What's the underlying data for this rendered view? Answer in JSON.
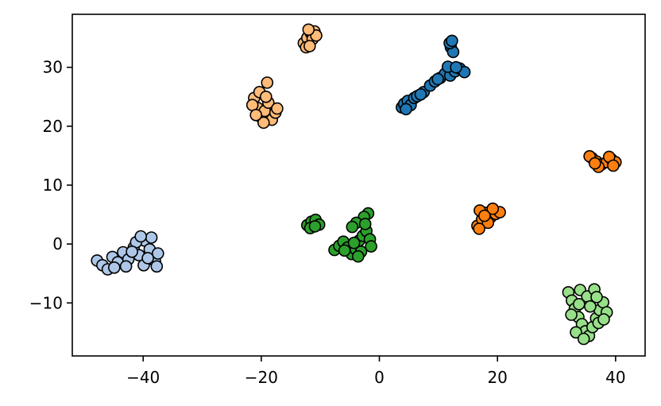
{
  "chart_data": {
    "type": "scatter",
    "title": "",
    "xlabel": "",
    "ylabel": "",
    "xlim": [
      -52,
      45
    ],
    "ylim": [
      -19,
      39
    ],
    "grid": false,
    "legend": "none",
    "x_ticks": [
      {
        "value": -40,
        "label": "−40"
      },
      {
        "value": -20,
        "label": "−20"
      },
      {
        "value": 0,
        "label": "0"
      },
      {
        "value": 20,
        "label": "20"
      },
      {
        "value": 40,
        "label": "40"
      }
    ],
    "y_ticks": [
      {
        "value": -10,
        "label": "−10"
      },
      {
        "value": 0,
        "label": "0"
      },
      {
        "value": 10,
        "label": "10"
      },
      {
        "value": 20,
        "label": "20"
      },
      {
        "value": 30,
        "label": "30"
      }
    ],
    "series": [
      {
        "color": "#1f77b4",
        "points": [
          [
            3.8,
            23.2
          ],
          [
            4.2,
            23.8
          ],
          [
            4.8,
            24.3
          ],
          [
            5.3,
            23.6
          ],
          [
            5.9,
            24.8
          ],
          [
            4.5,
            22.9
          ],
          [
            6.4,
            25.1
          ],
          [
            7.5,
            25.8
          ],
          [
            8.6,
            26.9
          ],
          [
            9.4,
            27.6
          ],
          [
            10.3,
            28.2
          ],
          [
            11.1,
            28.9
          ],
          [
            12.0,
            28.6
          ],
          [
            12.8,
            29.3
          ],
          [
            13.6,
            29.8
          ],
          [
            14.4,
            29.2
          ],
          [
            11.6,
            30.1
          ],
          [
            9.9,
            28.0
          ],
          [
            12.1,
            33.4
          ],
          [
            12.5,
            32.6
          ],
          [
            11.9,
            34.1
          ],
          [
            12.3,
            34.5
          ],
          [
            13.0,
            30.0
          ],
          [
            7.0,
            25.4
          ]
        ]
      },
      {
        "color": "#ff7f0e",
        "points": [
          [
            36.0,
            14.6
          ],
          [
            36.8,
            14.0
          ],
          [
            37.6,
            13.5
          ],
          [
            38.5,
            13.9
          ],
          [
            39.3,
            14.4
          ],
          [
            40.0,
            13.9
          ],
          [
            37.1,
            13.1
          ],
          [
            38.9,
            14.8
          ],
          [
            35.6,
            14.9
          ],
          [
            39.6,
            13.3
          ],
          [
            36.5,
            13.7
          ],
          [
            16.6,
            3.1
          ],
          [
            17.4,
            4.2
          ],
          [
            18.1,
            5.3
          ],
          [
            18.9,
            4.6
          ],
          [
            19.7,
            5.1
          ],
          [
            20.4,
            5.4
          ],
          [
            17.0,
            5.7
          ],
          [
            18.4,
            3.6
          ],
          [
            16.9,
            2.6
          ],
          [
            19.2,
            6.0
          ],
          [
            17.8,
            4.8
          ]
        ]
      },
      {
        "color": "#ffbb78",
        "points": [
          [
            -12.8,
            34.1
          ],
          [
            -12.2,
            35.0
          ],
          [
            -11.6,
            35.8
          ],
          [
            -11.0,
            36.1
          ],
          [
            -12.4,
            33.4
          ],
          [
            -11.3,
            34.8
          ],
          [
            -10.7,
            35.4
          ],
          [
            -12.0,
            36.4
          ],
          [
            -11.8,
            33.6
          ],
          [
            -21.2,
            24.8
          ],
          [
            -20.6,
            23.1
          ],
          [
            -20.0,
            21.5
          ],
          [
            -19.4,
            22.6
          ],
          [
            -18.8,
            24.0
          ],
          [
            -18.2,
            21.1
          ],
          [
            -17.6,
            22.3
          ],
          [
            -19.0,
            27.4
          ],
          [
            -20.3,
            25.8
          ],
          [
            -21.5,
            23.6
          ],
          [
            -19.6,
            20.6
          ],
          [
            -17.3,
            23.0
          ],
          [
            -20.9,
            21.9
          ],
          [
            -19.2,
            25.0
          ]
        ]
      },
      {
        "color": "#2ca02c",
        "points": [
          [
            -12.2,
            3.2
          ],
          [
            -11.5,
            3.8
          ],
          [
            -10.8,
            4.1
          ],
          [
            -10.2,
            3.3
          ],
          [
            -11.7,
            2.7
          ],
          [
            -10.9,
            3.0
          ],
          [
            -7.6,
            -1.0
          ],
          [
            -6.8,
            -0.3
          ],
          [
            -6.1,
            0.4
          ],
          [
            -5.4,
            -0.6
          ],
          [
            -4.7,
            -1.7
          ],
          [
            -4.0,
            -0.9
          ],
          [
            -3.4,
            0.6
          ],
          [
            -2.8,
            1.4
          ],
          [
            -2.2,
            2.2
          ],
          [
            -1.6,
            0.8
          ],
          [
            -1.9,
            5.2
          ],
          [
            -2.6,
            4.6
          ],
          [
            -3.9,
            3.6
          ],
          [
            -4.6,
            2.9
          ],
          [
            -3.1,
            -1.3
          ],
          [
            -5.9,
            -1.1
          ],
          [
            -1.4,
            -0.4
          ],
          [
            -2.4,
            3.4
          ],
          [
            -4.3,
            0.2
          ],
          [
            -3.6,
            -2.1
          ]
        ]
      },
      {
        "color": "#98df8a",
        "points": [
          [
            32.0,
            -8.2
          ],
          [
            32.6,
            -9.6
          ],
          [
            33.1,
            -11.0
          ],
          [
            33.7,
            -12.4
          ],
          [
            34.3,
            -13.6
          ],
          [
            34.9,
            -14.8
          ],
          [
            35.5,
            -15.6
          ],
          [
            36.1,
            -14.1
          ],
          [
            36.7,
            -12.6
          ],
          [
            37.3,
            -11.2
          ],
          [
            37.9,
            -9.9
          ],
          [
            38.5,
            -11.6
          ],
          [
            34.0,
            -7.8
          ],
          [
            35.2,
            -8.9
          ],
          [
            36.4,
            -7.7
          ],
          [
            33.3,
            -15.0
          ],
          [
            34.6,
            -16.1
          ],
          [
            37.1,
            -13.4
          ],
          [
            35.7,
            -10.6
          ],
          [
            32.5,
            -12.0
          ],
          [
            38.0,
            -12.8
          ],
          [
            36.8,
            -9.0
          ],
          [
            33.8,
            -10.2
          ]
        ]
      },
      {
        "color": "#aec7e8",
        "points": [
          [
            -47.8,
            -2.8
          ],
          [
            -46.9,
            -3.6
          ],
          [
            -46.0,
            -4.3
          ],
          [
            -45.2,
            -2.2
          ],
          [
            -44.3,
            -3.1
          ],
          [
            -43.4,
            -1.4
          ],
          [
            -42.5,
            -2.6
          ],
          [
            -41.6,
            -0.6
          ],
          [
            -40.7,
            -1.9
          ],
          [
            -39.8,
            0.6
          ],
          [
            -38.9,
            -0.9
          ],
          [
            -38.0,
            -2.9
          ],
          [
            -37.5,
            -1.6
          ],
          [
            -38.6,
            1.1
          ],
          [
            -39.9,
            -3.6
          ],
          [
            -41.2,
            0.3
          ],
          [
            -42.9,
            -3.8
          ],
          [
            -40.4,
            1.3
          ],
          [
            -37.7,
            -3.8
          ],
          [
            -44.9,
            -4.0
          ],
          [
            -39.2,
            -2.4
          ],
          [
            -41.9,
            -1.3
          ]
        ]
      }
    ]
  }
}
